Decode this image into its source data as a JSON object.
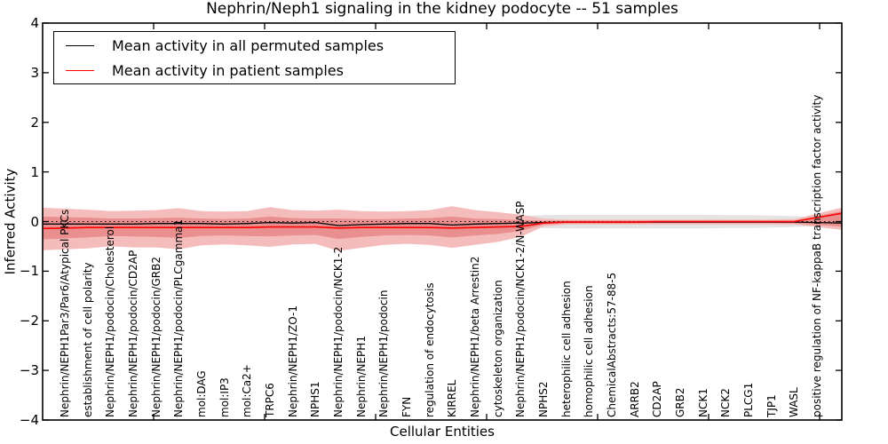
{
  "chart_data": {
    "type": "line",
    "title": "Nephrin/Neph1 signaling in the kidney podocyte -- 51 samples",
    "xlabel": "Cellular Entities",
    "ylabel": "Inferred Activity",
    "ylim": [
      -4,
      4
    ],
    "yticks": [
      4,
      3,
      2,
      1,
      0,
      -1,
      -2,
      -3,
      -4
    ],
    "xticks_data": [
      5,
      10,
      15,
      20,
      25,
      30,
      35
    ],
    "xlim_data": [
      0,
      36
    ],
    "grid": false,
    "zero_line": "dotted",
    "legend_position": "upper left",
    "categories": [
      "Nephrin/NEPH1Par3/Par6/Atypical PKCs",
      "establishment of cell polarity",
      "Nephrin/NEPH1/podocin/Cholesterol",
      "Nephrin/NEPH1/podocin/CD2AP",
      "Nephrin/NEPH1/podocin/GRB2",
      "Nephrin/NEPH1/podocin/PLCgamma1",
      "mol:DAG",
      "mol:IP3",
      "mol:Ca2+",
      "TRPC6",
      "Nephrin/NEPH1/ZO-1",
      "NPHS1",
      "Nephrin/NEPH1/podocin/NCK1-2",
      "Nephrin/NEPH1",
      "Nephrin/NEPH1/podocin",
      "FYN",
      "regulation of endocytosis",
      "KIRREL",
      "Nephrin/NEPH1/beta Arrestin2",
      "cytoskeleton organization",
      "Nephrin/NEPH1/podocin/NCK1-2/N-WASP",
      "NPHS2",
      "heterophilic cell adhesion",
      "homophilic cell adhesion",
      "ChemicalAbstracts:57-88-5",
      "ARRB2",
      "CD2AP",
      "GRB2",
      "NCK1",
      "NCK2",
      "PLCG1",
      "TJP1",
      "WASL",
      "positive regulation of NF-kappaB transcription factor activity"
    ],
    "series": [
      {
        "name": "Mean activity in all permuted samples",
        "color": "#000000",
        "values": [
          -0.05,
          -0.05,
          -0.05,
          -0.05,
          -0.04,
          -0.04,
          -0.04,
          -0.05,
          -0.04,
          -0.02,
          -0.03,
          -0.02,
          -0.08,
          -0.06,
          -0.05,
          -0.04,
          -0.04,
          -0.07,
          -0.05,
          -0.04,
          -0.03,
          -0.02,
          -0.01,
          -0.01,
          -0.01,
          -0.01,
          -0.01,
          -0.01,
          -0.01,
          -0.01,
          -0.01,
          -0.01,
          -0.01,
          -0.02
        ],
        "band": {
          "color": "#e4e4e4",
          "upper": [
            0.1,
            0.1,
            0.1,
            0.1,
            0.1,
            0.1,
            0.1,
            0.1,
            0.1,
            0.1,
            0.1,
            0.1,
            0.1,
            0.1,
            0.1,
            0.1,
            0.1,
            0.1,
            0.1,
            0.1,
            0.11,
            0.13,
            0.14,
            0.14,
            0.14,
            0.14,
            0.14,
            0.14,
            0.14,
            0.13,
            0.13,
            0.12,
            0.11,
            0.09
          ],
          "lower": [
            -0.1,
            -0.1,
            -0.1,
            -0.1,
            -0.1,
            -0.1,
            -0.1,
            -0.1,
            -0.1,
            -0.1,
            -0.1,
            -0.1,
            -0.1,
            -0.1,
            -0.1,
            -0.1,
            -0.1,
            -0.1,
            -0.1,
            -0.1,
            -0.11,
            -0.13,
            -0.14,
            -0.14,
            -0.14,
            -0.14,
            -0.14,
            -0.14,
            -0.14,
            -0.13,
            -0.13,
            -0.12,
            -0.11,
            -0.09
          ]
        }
      },
      {
        "name": "Mean activity in patient samples",
        "color": "#ff0000",
        "values": [
          -0.13,
          -0.12,
          -0.12,
          -0.12,
          -0.12,
          -0.12,
          -0.12,
          -0.12,
          -0.12,
          -0.11,
          -0.11,
          -0.11,
          -0.13,
          -0.12,
          -0.12,
          -0.12,
          -0.12,
          -0.13,
          -0.12,
          -0.11,
          -0.1,
          -0.03,
          -0.01,
          -0.01,
          -0.01,
          -0.01,
          0,
          0,
          0,
          0,
          0,
          0,
          0,
          0.08
        ],
        "band_outer": {
          "color": "#f5bcbc",
          "upper": [
            0.26,
            0.24,
            0.21,
            0.22,
            0.23,
            0.27,
            0.21,
            0.2,
            0.21,
            0.29,
            0.23,
            0.22,
            0.24,
            0.21,
            0.2,
            0.21,
            0.23,
            0.31,
            0.23,
            0.19,
            0.14,
            0.06,
            0.04,
            0.04,
            0.04,
            0.04,
            0.04,
            0.04,
            0.04,
            0.04,
            0.04,
            0.04,
            0.05,
            0.16
          ],
          "lower": [
            -0.56,
            -0.54,
            -0.5,
            -0.52,
            -0.52,
            -0.56,
            -0.48,
            -0.46,
            -0.48,
            -0.51,
            -0.46,
            -0.45,
            -0.59,
            -0.53,
            -0.47,
            -0.45,
            -0.47,
            -0.53,
            -0.47,
            -0.41,
            -0.31,
            -0.1,
            -0.06,
            -0.06,
            -0.06,
            -0.06,
            -0.06,
            -0.06,
            -0.06,
            -0.06,
            -0.06,
            -0.06,
            -0.06,
            -0.11
          ]
        },
        "band_inner": {
          "color": "#e98f8f",
          "upper": [
            0.09,
            0.08,
            0.06,
            0.06,
            0.07,
            0.08,
            0.06,
            0.05,
            0.06,
            0.1,
            0.07,
            0.06,
            0.06,
            0.05,
            0.05,
            0.06,
            0.07,
            0.1,
            0.06,
            0.05,
            0.03,
            0.02,
            0.02,
            0.02,
            0.02,
            0.02,
            0.02,
            0.02,
            0.02,
            0.02,
            0.02,
            0.02,
            0.02,
            0.11
          ],
          "lower": [
            -0.34,
            -0.32,
            -0.29,
            -0.3,
            -0.31,
            -0.33,
            -0.29,
            -0.28,
            -0.29,
            -0.3,
            -0.28,
            -0.27,
            -0.35,
            -0.31,
            -0.28,
            -0.27,
            -0.28,
            -0.32,
            -0.28,
            -0.25,
            -0.19,
            -0.06,
            -0.04,
            -0.04,
            -0.04,
            -0.04,
            -0.03,
            -0.03,
            -0.03,
            -0.03,
            -0.03,
            -0.03,
            -0.04,
            -0.07
          ]
        }
      }
    ]
  }
}
